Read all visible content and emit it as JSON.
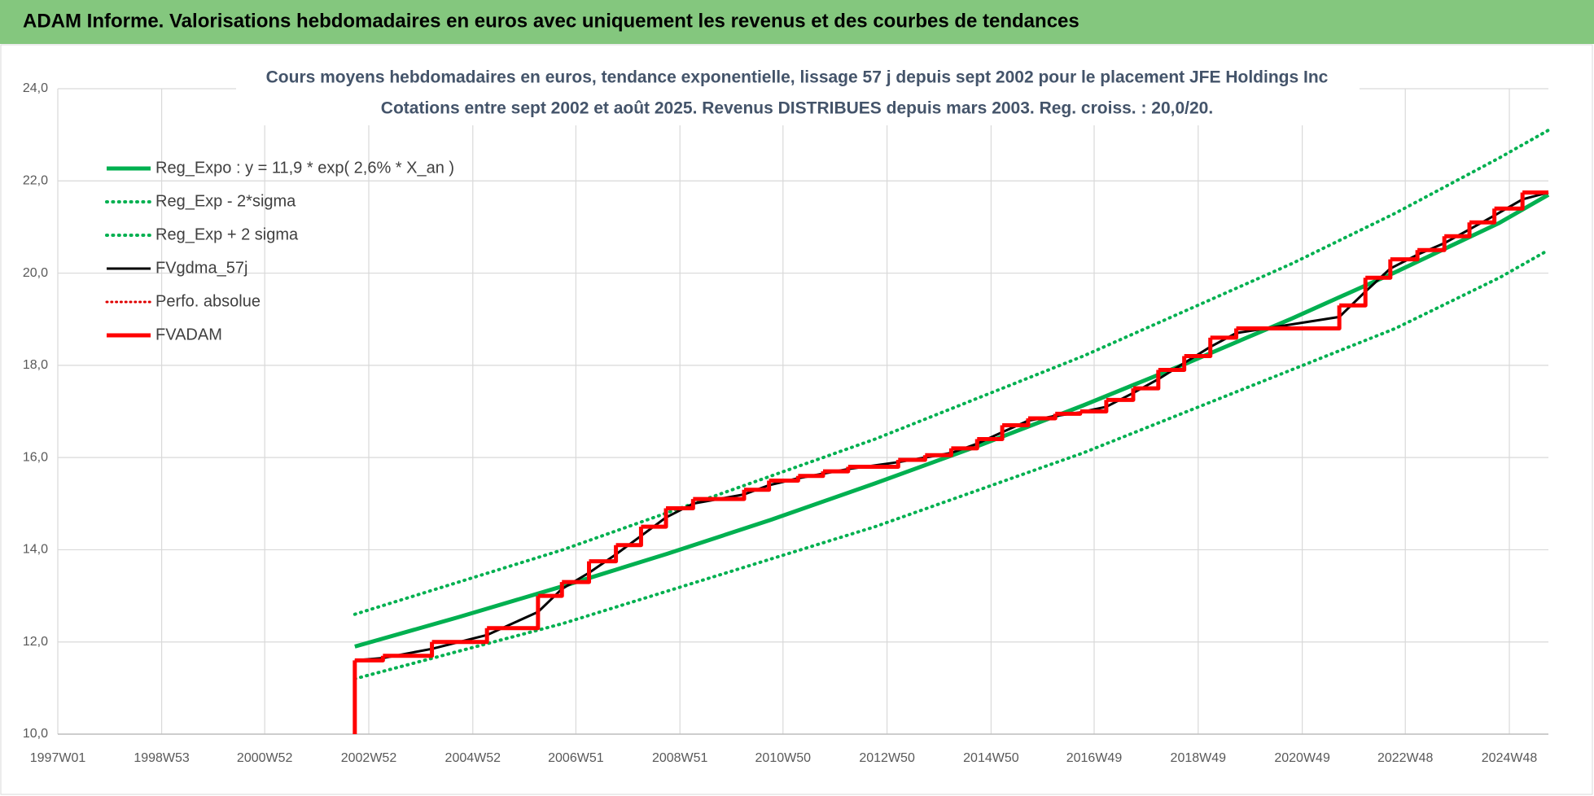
{
  "header": {
    "title": "ADAM Informe. Valorisations hebdomadaires en euros avec uniquement les revenus et des courbes de tendances"
  },
  "chart_data": {
    "type": "line",
    "title": "Cours moyens hebdomadaires en euros, tendance exponentielle, lissage 57 j depuis sept 2002 pour le placement JFE Holdings Inc",
    "subtitle": "Cotations entre sept 2002 et août 2025. Revenus DISTRIBUES depuis mars 2003. Reg. croiss. : 20,0/20.",
    "xlim": [
      "1997W01",
      "2025W35"
    ],
    "xticks": [
      "1997W01",
      "1998W53",
      "2000W52",
      "2002W52",
      "2004W52",
      "2006W51",
      "2008W51",
      "2010W50",
      "2012W50",
      "2014W50",
      "2016W49",
      "2018W49",
      "2020W49",
      "2022W48",
      "2024W48"
    ],
    "ylim": [
      10,
      24
    ],
    "yticks": [
      {
        "value": 10,
        "label": "10,0"
      },
      {
        "value": 12,
        "label": "12,0"
      },
      {
        "value": 14,
        "label": "14,0"
      },
      {
        "value": 16,
        "label": "16,0"
      },
      {
        "value": 18,
        "label": "18,0"
      },
      {
        "value": 20,
        "label": "20,0"
      },
      {
        "value": 22,
        "label": "22,0"
      },
      {
        "value": 24,
        "label": "24,0"
      }
    ],
    "grid": true,
    "legend": "top-left",
    "series": [
      {
        "name": "Reg_Expo : y = 11,9 * exp( 2,6% * X_an )",
        "color": "#00b050",
        "width": 5,
        "dash": false,
        "x": [
          "2002W38",
          "2004W38",
          "2006W38",
          "2008W38",
          "2010W38",
          "2012W38",
          "2014W38",
          "2016W38",
          "2018W38",
          "2020W38",
          "2022W38",
          "2024W38",
          "2025W35"
        ],
        "values": [
          11.9,
          12.54,
          13.21,
          13.91,
          14.65,
          15.44,
          16.26,
          17.13,
          18.05,
          19.01,
          20.02,
          21.09,
          21.7
        ]
      },
      {
        "name": "Reg_Exp - 2*sigma",
        "color": "#00b050",
        "width": 4,
        "dash": true,
        "x": [
          "2002W38",
          "2004W38",
          "2006W38",
          "2008W38",
          "2010W38",
          "2012W38",
          "2014W38",
          "2016W38",
          "2018W38",
          "2020W38",
          "2022W38",
          "2024W38",
          "2025W35"
        ],
        "values": [
          11.2,
          11.8,
          12.4,
          13.1,
          13.8,
          14.5,
          15.3,
          16.1,
          17.0,
          17.9,
          18.8,
          19.9,
          20.5
        ]
      },
      {
        "name": "Reg_Exp + 2 sigma",
        "color": "#00b050",
        "width": 4,
        "dash": true,
        "x": [
          "2002W38",
          "2004W38",
          "2006W38",
          "2008W38",
          "2010W38",
          "2012W38",
          "2014W38",
          "2016W38",
          "2018W38",
          "2020W38",
          "2022W38",
          "2024W38",
          "2025W35"
        ],
        "values": [
          12.6,
          13.3,
          14.0,
          14.8,
          15.6,
          16.4,
          17.3,
          18.2,
          19.2,
          20.2,
          21.3,
          22.5,
          23.1
        ]
      },
      {
        "name": "FVgdma_57j",
        "color": "#000000",
        "width": 3,
        "dash": false,
        "x": [
          "2002W38",
          "2003W14",
          "2004W11",
          "2005W14",
          "2006W13",
          "2006W37",
          "2007W12",
          "2007W39",
          "2008W12",
          "2008W37",
          "2009W12",
          "2010W11",
          "2010W36",
          "2011W13",
          "2011W38",
          "2012W11",
          "2013W09",
          "2013W36",
          "2014W10",
          "2014W36",
          "2015W09",
          "2015W35",
          "2016W10",
          "2016W35",
          "2017W09",
          "2017W36",
          "2018W09",
          "2018W35",
          "2019W09",
          "2019W35",
          "2021W34",
          "2022W08",
          "2022W33",
          "2023W08",
          "2023W35",
          "2024W08",
          "2024W33",
          "2025W09",
          "2025W35"
        ],
        "values": [
          11.6,
          11.65,
          11.85,
          12.15,
          12.65,
          13.15,
          13.5,
          13.9,
          14.3,
          14.7,
          15.0,
          15.2,
          15.4,
          15.55,
          15.65,
          15.75,
          15.9,
          16.0,
          16.1,
          16.3,
          16.55,
          16.8,
          16.9,
          16.98,
          17.1,
          17.4,
          17.7,
          18.05,
          18.4,
          18.7,
          19.05,
          19.6,
          20.1,
          20.4,
          20.65,
          20.95,
          21.25,
          21.6,
          21.75
        ]
      },
      {
        "name": "Perfo. absolue",
        "color": "#e00000",
        "width": 3,
        "dash": true,
        "x": [],
        "values": []
      },
      {
        "name": "FVADAM",
        "color": "#ff0000",
        "width": 5,
        "dash": false,
        "step": true,
        "x": [
          "2002W38",
          "2002W38",
          "2003W14",
          "2004W11",
          "2005W14",
          "2006W13",
          "2006W37",
          "2007W12",
          "2007W39",
          "2008W12",
          "2008W37",
          "2009W12",
          "2010W11",
          "2010W36",
          "2011W13",
          "2011W38",
          "2012W11",
          "2013W09",
          "2013W36",
          "2014W10",
          "2014W36",
          "2015W09",
          "2015W35",
          "2016W10",
          "2016W35",
          "2017W09",
          "2017W36",
          "2018W09",
          "2018W35",
          "2019W09",
          "2019W35",
          "2021W34",
          "2022W08",
          "2022W33",
          "2023W08",
          "2023W35",
          "2024W08",
          "2024W33",
          "2025W09",
          "2025W35"
        ],
        "values": [
          10.0,
          11.6,
          11.7,
          12.0,
          12.3,
          13.0,
          13.3,
          13.75,
          14.1,
          14.5,
          14.9,
          15.1,
          15.3,
          15.5,
          15.6,
          15.7,
          15.8,
          15.95,
          16.05,
          16.2,
          16.4,
          16.7,
          16.85,
          16.95,
          17.0,
          17.25,
          17.5,
          17.9,
          18.2,
          18.6,
          18.8,
          19.3,
          19.9,
          20.3,
          20.5,
          20.8,
          21.1,
          21.4,
          21.75,
          21.75
        ]
      }
    ]
  }
}
